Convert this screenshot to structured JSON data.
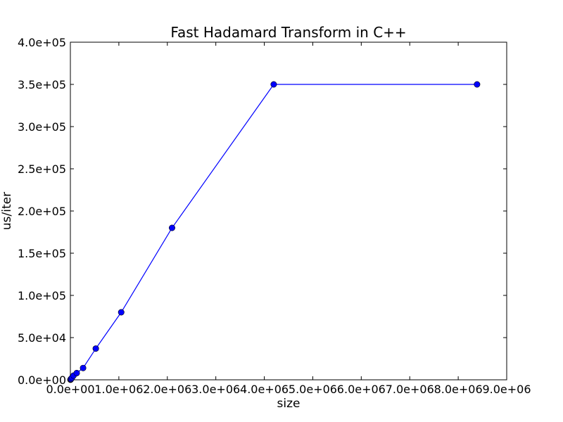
{
  "chart_data": {
    "type": "line",
    "title": "Fast Hadamard Transform in C++",
    "xlabel": "size",
    "ylabel": "us/iter",
    "xlim": [
      0,
      9000000
    ],
    "ylim": [
      0,
      400000
    ],
    "xticks": [
      0,
      1000000,
      2000000,
      3000000,
      4000000,
      5000000,
      6000000,
      7000000,
      8000000,
      9000000
    ],
    "xtick_labels": [
      "0.0e+00",
      "1.0e+06",
      "2.0e+06",
      "3.0e+06",
      "4.0e+06",
      "5.0e+06",
      "6.0e+06",
      "7.0e+06",
      "8.0e+06",
      "9.0e+06"
    ],
    "yticks": [
      0,
      50000,
      100000,
      150000,
      200000,
      250000,
      300000,
      350000,
      400000
    ],
    "ytick_labels": [
      "0.0e+00",
      "5.0e+04",
      "1.0e+05",
      "1.5e+05",
      "2.0e+05",
      "2.5e+05",
      "3.0e+05",
      "3.5e+05",
      "4.0e+05"
    ],
    "grid": false,
    "series": [
      {
        "color": "#0000ff",
        "marker": "circle",
        "x": [
          2048,
          4096,
          8192,
          16384,
          32768,
          65536,
          131072,
          262144,
          524288,
          1048576,
          2097152,
          4194304,
          8388608
        ],
        "y": [
          150,
          300,
          600,
          1200,
          2500,
          5000,
          8000,
          14000,
          37000,
          80000,
          180000,
          350000,
          350000
        ]
      }
    ]
  }
}
